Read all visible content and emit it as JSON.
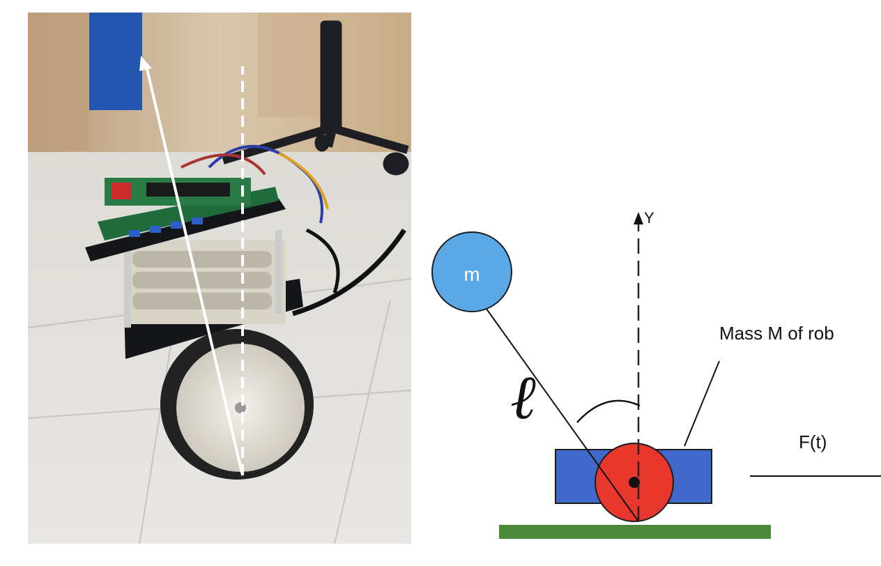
{
  "diagram": {
    "mass_pendulum_label": "m",
    "length_label": "ℓ",
    "y_axis_label": "Y",
    "robot_mass_label": "Mass M of rob",
    "force_label": "F(t)"
  },
  "colors": {
    "pendulum_mass": "#5aa9e6",
    "robot_body": "#4169c9",
    "wheel": "#e8382d",
    "ground": "#4c8a3a"
  }
}
